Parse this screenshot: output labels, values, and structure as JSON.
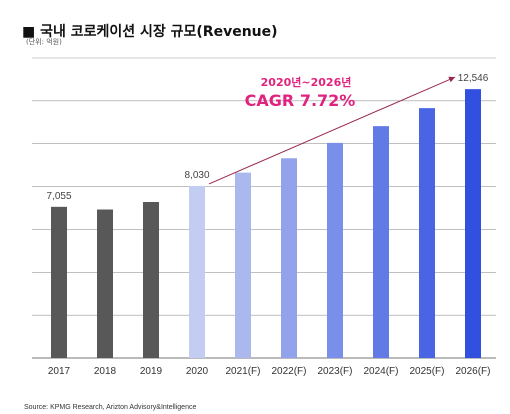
{
  "header": {
    "title": "■ 국내 코로케이션 시장 규모(Revenue)",
    "unit": "(단위: 억원)"
  },
  "footer": {
    "source": "Source: KPMG Research, Arizton Advisory&Intelligence"
  },
  "colors": {
    "bar_actual": "#585858",
    "bar_forecast_start": "#c3cdf1",
    "bar_forecast_end": "#3150e0",
    "annotation": "#e0237e",
    "gridline": "#9a9a9a",
    "arrow": "#9b2a4a"
  },
  "chart_data": {
    "type": "bar",
    "title": "국내 코로케이션 시장 규모(Revenue)",
    "categories": [
      "2017",
      "2018",
      "2019",
      "2020",
      "2021(F)",
      "2022(F)",
      "2023(F)",
      "2024(F)",
      "2025(F)",
      "2026(F)"
    ],
    "values": [
      7055,
      6930,
      7280,
      8030,
      8650,
      9320,
      10040,
      10820,
      11660,
      12546
    ],
    "data_labels": [
      {
        "index": 0,
        "text": "7,055"
      },
      {
        "index": 3,
        "text": "8,030"
      },
      {
        "index": 9,
        "text": "12,546"
      }
    ],
    "ylim": [
      0,
      14000
    ],
    "grid": true,
    "annotation": {
      "period": "2020년~2026년",
      "cagr": "CAGR 7.72%",
      "from_index": 3,
      "to_index": 9
    }
  }
}
